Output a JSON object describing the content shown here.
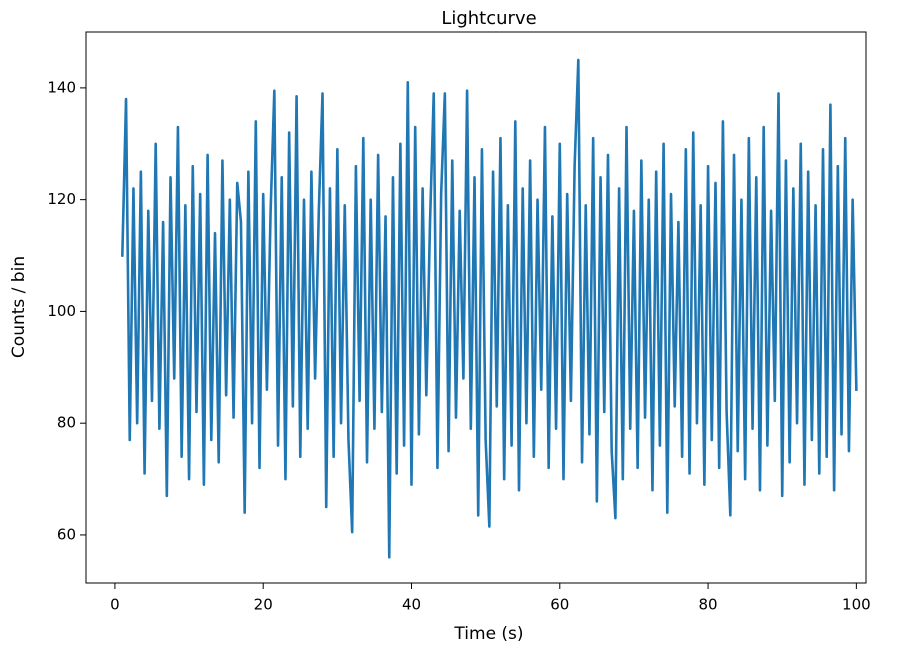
{
  "chart_data": {
    "type": "line",
    "title": "Lightcurve",
    "xlabel": "Time (s)",
    "ylabel": "Counts / bin",
    "color": "#1f77b4",
    "xlim": [
      -3.9,
      101.3
    ],
    "ylim": [
      51.4,
      150.0
    ],
    "xticks": [
      0,
      20,
      40,
      60,
      80,
      100
    ],
    "yticks": [
      60,
      80,
      100,
      120,
      140
    ],
    "x": [
      1,
      1.5,
      2,
      2.5,
      3,
      3.5,
      4,
      4.5,
      5,
      5.5,
      6,
      6.5,
      7,
      7.5,
      8,
      8.5,
      9,
      9.5,
      10,
      10.5,
      11,
      11.5,
      12,
      12.5,
      13,
      13.5,
      14,
      14.5,
      15,
      15.5,
      16,
      16.5,
      17,
      17.5,
      18,
      18.5,
      19,
      19.5,
      20,
      20.5,
      21,
      21.5,
      22,
      22.5,
      23,
      23.5,
      24,
      24.5,
      25,
      25.5,
      26,
      26.5,
      27,
      27.5,
      28,
      28.5,
      29,
      29.5,
      30,
      30.5,
      31,
      31.5,
      32,
      32.5,
      33,
      33.5,
      34,
      34.5,
      35,
      35.5,
      36,
      36.5,
      37,
      37.5,
      38,
      38.5,
      39,
      39.5,
      40,
      40.5,
      41,
      41.5,
      42,
      42.5,
      43,
      43.5,
      44,
      44.5,
      45,
      45.5,
      46,
      46.5,
      47,
      47.5,
      48,
      48.5,
      49,
      49.5,
      50,
      50.5,
      51,
      51.5,
      52,
      52.5,
      53,
      53.5,
      54,
      54.5,
      55,
      55.5,
      56,
      56.5,
      57,
      57.5,
      58,
      58.5,
      59,
      59.5,
      60,
      60.5,
      61,
      61.5,
      62,
      62.5,
      63,
      63.5,
      64,
      64.5,
      65,
      65.5,
      66,
      66.5,
      67,
      67.5,
      68,
      68.5,
      69,
      69.5,
      70,
      70.5,
      71,
      71.5,
      72,
      72.5,
      73,
      73.5,
      74,
      74.5,
      75,
      75.5,
      76,
      76.5,
      77,
      77.5,
      78,
      78.5,
      79,
      79.5,
      80,
      80.5,
      81,
      81.5,
      82,
      82.5,
      83,
      83.5,
      84,
      84.5,
      85,
      85.5,
      86,
      86.5,
      87,
      87.5,
      88,
      88.5,
      89,
      89.5,
      90,
      90.5,
      91,
      91.5,
      92,
      92.5,
      93,
      93.5,
      94,
      94.5,
      95,
      95.5,
      96,
      96.5,
      97,
      97.5,
      98,
      98.5,
      99,
      99.5,
      100
    ],
    "values": [
      110,
      138,
      77,
      122,
      80,
      125,
      71,
      118,
      84,
      130,
      79,
      116,
      67,
      124,
      88,
      133,
      74,
      119,
      70,
      126,
      82,
      121,
      69,
      128,
      77,
      114,
      73,
      127,
      85,
      120,
      81,
      123,
      116,
      64,
      125,
      80,
      134,
      72,
      121,
      86,
      118,
      139.5,
      76,
      124,
      70,
      132,
      83,
      138.5,
      74,
      120,
      79,
      125,
      88,
      118,
      139,
      65,
      122,
      74,
      129,
      80,
      119,
      77,
      60.5,
      126,
      84,
      131,
      73,
      120,
      79,
      128,
      82,
      117,
      56,
      124,
      71,
      130,
      76,
      141,
      69,
      133,
      78,
      122,
      85,
      116,
      139,
      72,
      121,
      139,
      75,
      127,
      81,
      118,
      88,
      139.5,
      79,
      124,
      63.5,
      129,
      77,
      61.5,
      125,
      83,
      131,
      70,
      119,
      76,
      134,
      68,
      122,
      80,
      127,
      74,
      120,
      86,
      133,
      72,
      117,
      79,
      130,
      70,
      121,
      84,
      126,
      145,
      73,
      119,
      78,
      131,
      66,
      124,
      82,
      128,
      75,
      63,
      122,
      70,
      133,
      79,
      118,
      72,
      127,
      81,
      120,
      68,
      125,
      76,
      130,
      64,
      121,
      83,
      116,
      74,
      129,
      71,
      132,
      80,
      119,
      69,
      126,
      77,
      123,
      72,
      134,
      82,
      63.5,
      128,
      75,
      120,
      70,
      131,
      79,
      124,
      68,
      133,
      76,
      118,
      84,
      139,
      67,
      127,
      73,
      122,
      80,
      130,
      69,
      125,
      77,
      119,
      71,
      129,
      74,
      137,
      68,
      126,
      78,
      131,
      75,
      120,
      86
    ]
  }
}
